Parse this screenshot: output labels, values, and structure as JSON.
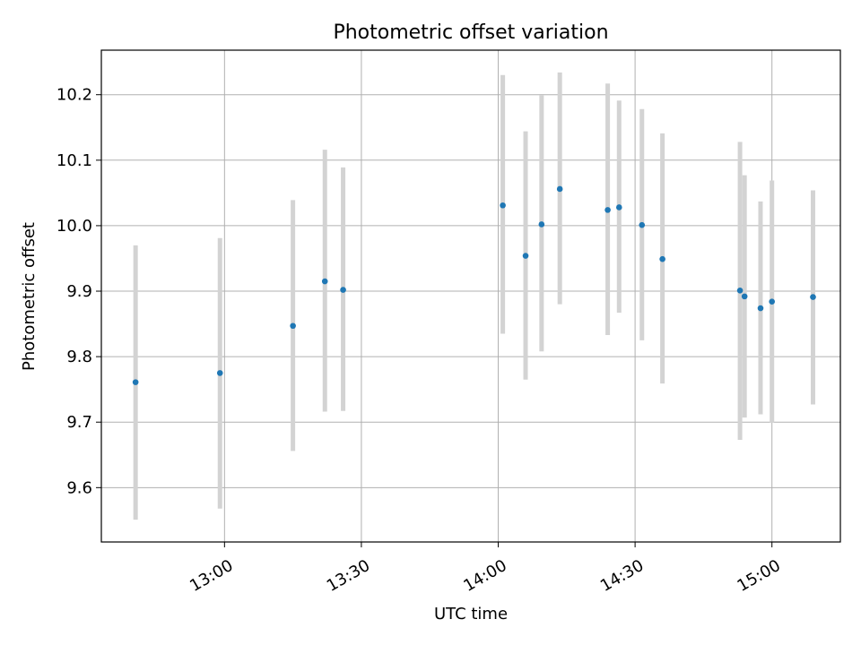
{
  "chart_data": {
    "type": "scatter",
    "title": "Photometric offset variation",
    "xlabel": "UTC time",
    "ylabel": "Photometric offset",
    "x_ticks": [
      "13:00",
      "13:30",
      "14:00",
      "14:30",
      "15:00"
    ],
    "y_ticks": [
      "9.6",
      "9.7",
      "9.8",
      "9.9",
      "10.0",
      "10.1",
      "10.2"
    ],
    "xlim": [
      "12:33",
      "15:15"
    ],
    "ylim": [
      9.517,
      10.268
    ],
    "grid": true,
    "errorbar_color": "#d3d3d3",
    "point_color": "#1f77b4",
    "points": [
      {
        "time": "12:40.5",
        "value": 9.761,
        "err_low": 9.551,
        "err_high": 9.97
      },
      {
        "time": "12:59.0",
        "value": 9.775,
        "err_low": 9.568,
        "err_high": 9.981
      },
      {
        "time": "13:15.0",
        "value": 9.847,
        "err_low": 9.656,
        "err_high": 10.039
      },
      {
        "time": "13:22.0",
        "value": 9.915,
        "err_low": 9.716,
        "err_high": 10.116
      },
      {
        "time": "13:26.0",
        "value": 9.902,
        "err_low": 9.717,
        "err_high": 10.089
      },
      {
        "time": "14:01.0",
        "value": 10.031,
        "err_low": 9.835,
        "err_high": 10.23
      },
      {
        "time": "14:06.0",
        "value": 9.954,
        "err_low": 9.765,
        "err_high": 10.144
      },
      {
        "time": "14:09.5",
        "value": 10.002,
        "err_low": 9.808,
        "err_high": 10.199
      },
      {
        "time": "14:13.5",
        "value": 10.056,
        "err_low": 9.88,
        "err_high": 10.234
      },
      {
        "time": "14:24.0",
        "value": 10.024,
        "err_low": 9.833,
        "err_high": 10.217
      },
      {
        "time": "14:26.5",
        "value": 10.028,
        "err_low": 9.867,
        "err_high": 10.191
      },
      {
        "time": "14:31.5",
        "value": 10.001,
        "err_low": 9.825,
        "err_high": 10.178
      },
      {
        "time": "14:36.0",
        "value": 9.949,
        "err_low": 9.759,
        "err_high": 10.141
      },
      {
        "time": "14:53.0",
        "value": 9.901,
        "err_low": 9.673,
        "err_high": 10.128
      },
      {
        "time": "14:54.0",
        "value": 9.892,
        "err_low": 9.707,
        "err_high": 10.077
      },
      {
        "time": "14:57.5",
        "value": 9.874,
        "err_low": 9.712,
        "err_high": 10.037
      },
      {
        "time": "15:00.0",
        "value": 9.884,
        "err_low": 9.699,
        "err_high": 10.069
      },
      {
        "time": "15:09.0",
        "value": 9.891,
        "err_low": 9.727,
        "err_high": 10.054
      }
    ]
  }
}
